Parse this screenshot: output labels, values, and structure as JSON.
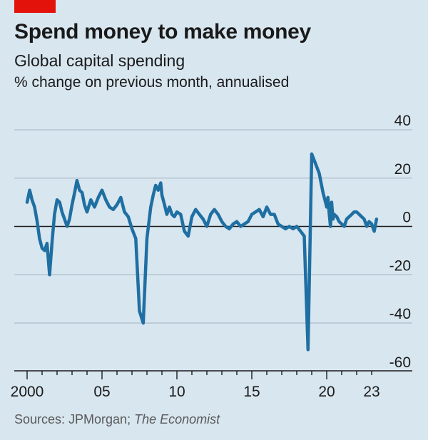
{
  "header": {
    "title": "Spend money to make money",
    "subtitle": "Global capital spending",
    "unit_note": "% change on previous month, annualised"
  },
  "footer": {
    "source_prefix": "Sources: JPMorgan; ",
    "source_italic": "The Economist"
  },
  "colors": {
    "background": "#d8e6ef",
    "line": "#1f6fa3",
    "brand": "#e3120b",
    "gridline": "#b3c4cf"
  },
  "chart_data": {
    "type": "line",
    "title": "Spend money to make money",
    "subtitle": "Global capital spending",
    "ylabel": "% change on previous month, annualised",
    "xlabel": "",
    "ylim": [
      -60,
      40
    ],
    "xlim": [
      2000,
      2023.5
    ],
    "yticks": [
      40,
      20,
      0,
      -20,
      -40,
      -60
    ],
    "xticks": [
      {
        "value": 2000,
        "label": "2000"
      },
      {
        "value": 2005,
        "label": "05"
      },
      {
        "value": 2010,
        "label": "10"
      },
      {
        "value": 2015,
        "label": "15"
      },
      {
        "value": 2020,
        "label": "20"
      },
      {
        "value": 2023,
        "label": "23"
      }
    ],
    "grid": true,
    "series": [
      {
        "x": [
          2000.0,
          2000.17,
          2000.33,
          2000.5,
          2000.67,
          2000.83,
          2001.0,
          2001.17,
          2001.33,
          2001.5,
          2001.67,
          2001.83,
          2002.0,
          2002.17,
          2002.33,
          2002.5,
          2002.67,
          2002.83,
          2003.0,
          2003.17,
          2003.33,
          2003.5,
          2003.67,
          2003.83,
          2004.0,
          2004.25,
          2004.5,
          2004.75,
          2005.0,
          2005.25,
          2005.5,
          2005.75,
          2006.0,
          2006.25,
          2006.5,
          2006.75,
          2007.0,
          2007.25,
          2007.5,
          2007.75,
          2008.0,
          2008.25,
          2008.42,
          2008.58,
          2008.75,
          2008.92,
          2009.0,
          2009.17,
          2009.33,
          2009.5,
          2009.67,
          2009.83,
          2010.0,
          2010.25,
          2010.5,
          2010.75,
          2011.0,
          2011.25,
          2011.5,
          2011.75,
          2012.0,
          2012.25,
          2012.5,
          2012.75,
          2013.0,
          2013.25,
          2013.5,
          2013.75,
          2014.0,
          2014.25,
          2014.5,
          2014.75,
          2015.0,
          2015.25,
          2015.5,
          2015.75,
          2016.0,
          2016.25,
          2016.5,
          2016.75,
          2017.0,
          2017.25,
          2017.5,
          2017.75,
          2018.0,
          2018.25,
          2018.5,
          2018.75,
          2019.0,
          2019.25,
          2019.5,
          2019.75,
          2019.92,
          2020.0,
          2020.08,
          2020.17,
          2020.25,
          2020.33,
          2020.42,
          2020.5,
          2020.67,
          2020.83,
          2021.0,
          2021.17,
          2021.33,
          2021.5,
          2021.67,
          2021.83,
          2022.0,
          2022.17,
          2022.33,
          2022.5,
          2022.67,
          2022.83,
          2023.0,
          2023.17,
          2023.33
        ],
        "values": [
          10,
          15,
          11,
          8,
          2,
          -5,
          -9,
          -10,
          -7,
          -20,
          -6,
          5,
          11,
          10,
          6,
          3,
          0,
          3,
          9,
          14,
          19,
          15,
          14,
          9,
          6,
          11,
          8,
          12,
          15,
          11,
          8,
          7,
          9,
          12,
          6,
          4,
          -1,
          -5,
          -35,
          -40,
          -5,
          8,
          13,
          17,
          15,
          18,
          13,
          9,
          5,
          8,
          5,
          4,
          6,
          5,
          -2,
          -4,
          4,
          7,
          5,
          3,
          0,
          5,
          7,
          5,
          2,
          0,
          -1,
          1,
          2,
          0,
          1,
          2,
          5,
          6,
          7,
          4,
          8,
          5,
          5,
          1,
          0,
          -1,
          0,
          -1,
          0,
          -2,
          -4,
          -51,
          30,
          26,
          22,
          14,
          10,
          8,
          12,
          5,
          0,
          10,
          3,
          5,
          4,
          2,
          1,
          0,
          3,
          4,
          5,
          6,
          6,
          5,
          4,
          3,
          0,
          2,
          1,
          -2,
          3
        ]
      }
    ]
  }
}
